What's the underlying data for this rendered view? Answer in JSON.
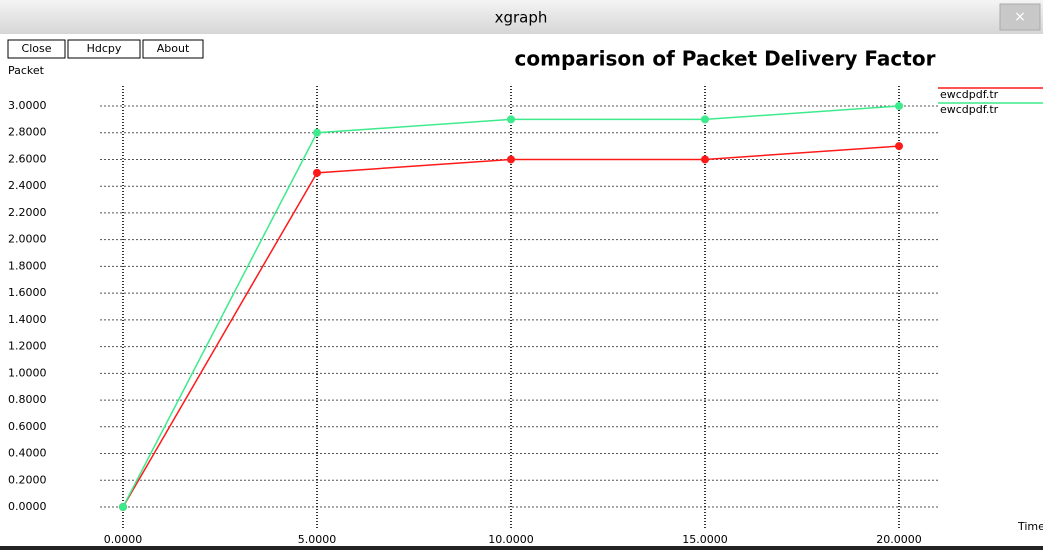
{
  "window": {
    "title": "xgraph",
    "close_icon": "×",
    "buttons": [
      "Close",
      "Hdcpy",
      "About"
    ]
  },
  "chart_data": {
    "type": "line",
    "title": "comparison of Packet Delivery Factor",
    "y_label": "Packet",
    "x_label": "Time",
    "x": [
      0,
      5,
      10,
      15,
      20
    ],
    "series": [
      {
        "name": "ewcdpdf.tr",
        "color": "#ff1a1a",
        "values": [
          0,
          2.5,
          2.6,
          2.6,
          2.7
        ]
      },
      {
        "name": "ewcdpdf.tr",
        "color": "#3ceb8c",
        "values": [
          0,
          2.8,
          2.9,
          2.9,
          3.0
        ]
      }
    ],
    "xlim": [
      0,
      20
    ],
    "xticks": [
      {
        "value": 0,
        "label": "0.0000"
      },
      {
        "value": 5,
        "label": "5.0000"
      },
      {
        "value": 10,
        "label": "10.0000"
      },
      {
        "value": 15,
        "label": "15.0000"
      },
      {
        "value": 20,
        "label": "20.0000"
      }
    ],
    "ylim": [
      0,
      3
    ],
    "yticks": [
      {
        "value": 0,
        "label": "0.0000"
      },
      {
        "value": 0.2,
        "label": "0.2000"
      },
      {
        "value": 0.4,
        "label": "0.4000"
      },
      {
        "value": 0.6,
        "label": "0.6000"
      },
      {
        "value": 0.8,
        "label": "0.8000"
      },
      {
        "value": 1.0,
        "label": "1.0000"
      },
      {
        "value": 1.2,
        "label": "1.2000"
      },
      {
        "value": 1.4,
        "label": "1.4000"
      },
      {
        "value": 1.6,
        "label": "1.6000"
      },
      {
        "value": 1.8,
        "label": "1.8000"
      },
      {
        "value": 2.0,
        "label": "2.0000"
      },
      {
        "value": 2.2,
        "label": "2.2000"
      },
      {
        "value": 2.4,
        "label": "2.4000"
      },
      {
        "value": 2.6,
        "label": "2.6000"
      },
      {
        "value": 2.8,
        "label": "2.8000"
      },
      {
        "value": 3.0,
        "label": "3.0000"
      }
    ],
    "grid": true,
    "legend": "right"
  }
}
